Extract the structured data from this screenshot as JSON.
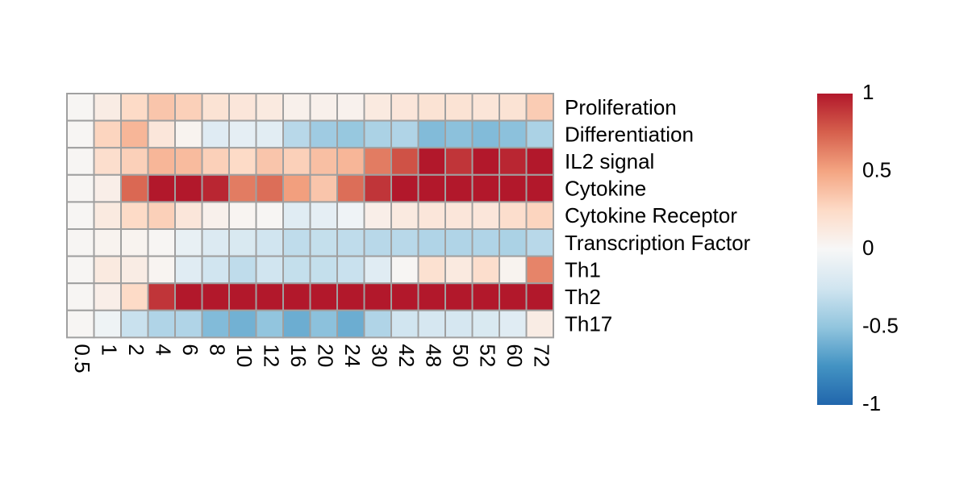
{
  "chart_data": {
    "type": "heatmap",
    "title": "",
    "xlabel": "",
    "ylabel": "",
    "columns": [
      "0.5",
      "1",
      "2",
      "4",
      "6",
      "8",
      "10",
      "12",
      "16",
      "20",
      "24",
      "30",
      "42",
      "48",
      "50",
      "52",
      "60",
      "72"
    ],
    "rows": [
      "Proliferation",
      "Differentiation",
      "IL2 signal",
      "Cytokine",
      "Cytokine Receptor",
      "Transcription Factor",
      "Th1",
      "Th2",
      "Th17"
    ],
    "values": [
      [
        0.02,
        0.1,
        0.25,
        0.35,
        0.3,
        0.18,
        0.15,
        0.12,
        0.06,
        0.06,
        0.05,
        0.12,
        0.15,
        0.18,
        0.18,
        0.16,
        0.18,
        0.32
      ],
      [
        0.02,
        0.28,
        0.42,
        0.15,
        0.04,
        -0.16,
        -0.12,
        -0.14,
        -0.35,
        -0.45,
        -0.48,
        -0.4,
        -0.38,
        -0.55,
        -0.52,
        -0.55,
        -0.52,
        -0.4
      ],
      [
        0.02,
        0.22,
        0.3,
        0.42,
        0.4,
        0.3,
        0.25,
        0.35,
        0.3,
        0.38,
        0.42,
        0.65,
        0.8,
        1.0,
        0.9,
        1.0,
        0.95,
        1.0
      ],
      [
        0.02,
        0.08,
        0.72,
        1.0,
        1.0,
        0.95,
        0.65,
        0.7,
        0.52,
        0.35,
        0.7,
        0.9,
        1.0,
        1.0,
        1.0,
        1.0,
        1.0,
        1.0
      ],
      [
        0.02,
        0.12,
        0.25,
        0.3,
        0.15,
        0.06,
        0.03,
        0.02,
        -0.15,
        -0.12,
        -0.05,
        0.08,
        0.12,
        0.15,
        0.15,
        0.15,
        0.22,
        0.28
      ],
      [
        0.02,
        0.04,
        0.04,
        0.02,
        -0.1,
        -0.18,
        -0.2,
        -0.25,
        -0.32,
        -0.3,
        -0.32,
        -0.35,
        -0.35,
        -0.38,
        -0.38,
        -0.38,
        -0.4,
        -0.35
      ],
      [
        0.02,
        0.12,
        0.1,
        0.03,
        -0.15,
        -0.25,
        -0.32,
        -0.25,
        -0.3,
        -0.3,
        -0.28,
        -0.15,
        0.02,
        0.2,
        0.12,
        0.22,
        0.04,
        0.62
      ],
      [
        0.02,
        0.08,
        0.25,
        0.9,
        1.0,
        1.0,
        1.0,
        1.0,
        1.0,
        1.0,
        1.0,
        1.0,
        1.0,
        1.0,
        1.0,
        1.0,
        1.0,
        1.0
      ],
      [
        0.02,
        -0.06,
        -0.28,
        -0.38,
        -0.38,
        -0.55,
        -0.6,
        -0.5,
        -0.62,
        -0.52,
        -0.62,
        -0.38,
        -0.25,
        -0.22,
        -0.22,
        -0.2,
        -0.15,
        0.1
      ]
    ],
    "colorbar": {
      "min": -1,
      "max": 1,
      "ticks": [
        1,
        0.5,
        0,
        -0.5,
        -1
      ],
      "tick_labels": [
        "1",
        "0.5",
        "0",
        "-0.5",
        "-1"
      ],
      "colors": [
        "#2166AC",
        "#4393C3",
        "#92C5DE",
        "#D1E5F0",
        "#F7F7F7",
        "#FDDBC7",
        "#F4A582",
        "#D6604D",
        "#B2182B"
      ]
    },
    "grid_color": "#A0A0A0",
    "legend": "right"
  }
}
